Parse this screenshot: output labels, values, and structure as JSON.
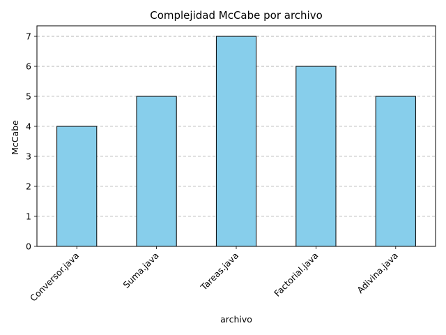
{
  "chart_data": {
    "type": "bar",
    "title": "Complejidad McCabe por archivo",
    "xlabel": "archivo",
    "ylabel": "McCabe",
    "categories": [
      "Conversor.java",
      "Suma.java",
      "Tareas.java",
      "Factorial.java",
      "Adivina.java"
    ],
    "values": [
      4,
      5,
      7,
      6,
      5
    ],
    "ylim": [
      0,
      7.35
    ],
    "yticks": [
      "0",
      "1",
      "2",
      "3",
      "4",
      "5",
      "6",
      "7"
    ],
    "grid": "y-dashed",
    "legend": "none",
    "bar_color": "#87ceeb",
    "bar_edge_color": "#000000",
    "grid_color": "#b0b0b0"
  }
}
